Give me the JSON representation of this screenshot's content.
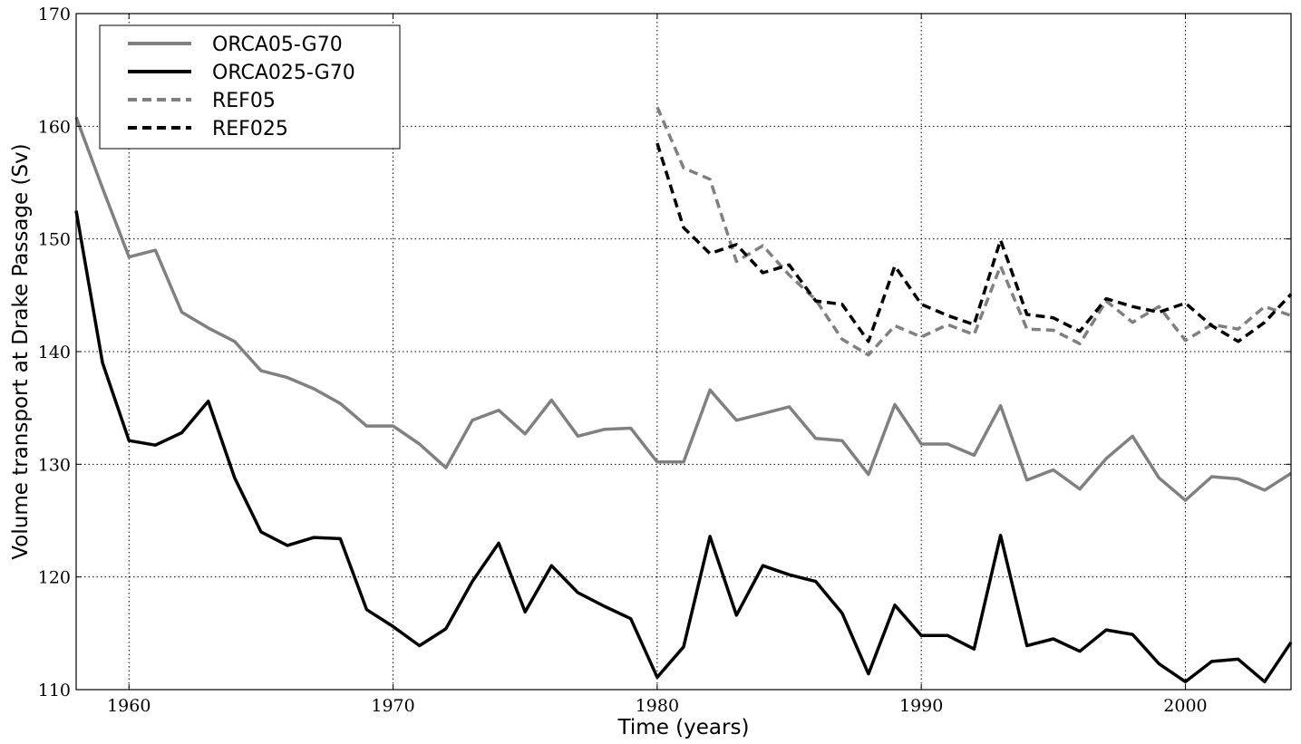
{
  "chart_data": {
    "type": "line",
    "xlabel": "Time (years)",
    "ylabel": "Volume transport at Drake Passage (Sv)",
    "xlim": [
      1958,
      2004
    ],
    "ylim": [
      110,
      170
    ],
    "xticks": [
      1960,
      1970,
      1980,
      1990,
      2000
    ],
    "yticks": [
      110,
      120,
      130,
      140,
      150,
      160,
      170
    ],
    "grid": true,
    "legend_position": "top-left",
    "series": [
      {
        "name": "ORCA05-G70",
        "color": "#808080",
        "style": "solid",
        "x": [
          1958,
          1959,
          1960,
          1961,
          1962,
          1963,
          1964,
          1965,
          1966,
          1967,
          1968,
          1969,
          1970,
          1971,
          1972,
          1973,
          1974,
          1975,
          1976,
          1977,
          1978,
          1979,
          1980,
          1981,
          1982,
          1983,
          1984,
          1985,
          1986,
          1987,
          1988,
          1989,
          1990,
          1991,
          1992,
          1993,
          1994,
          1995,
          1996,
          1997,
          1998,
          1999,
          2000,
          2001,
          2002,
          2003,
          2004
        ],
        "values": [
          160.8,
          154.5,
          148.4,
          149.0,
          143.5,
          142.1,
          140.9,
          138.3,
          137.7,
          136.7,
          135.4,
          133.4,
          133.4,
          131.8,
          129.7,
          133.9,
          134.8,
          132.7,
          135.7,
          132.5,
          133.1,
          133.2,
          130.2,
          130.2,
          136.6,
          133.9,
          134.5,
          135.1,
          132.3,
          132.1,
          129.1,
          135.3,
          131.8,
          131.8,
          130.8,
          135.2,
          128.6,
          129.5,
          127.8,
          130.5,
          132.5,
          128.8,
          126.8,
          128.9,
          128.7,
          127.7,
          129.2
        ]
      },
      {
        "name": "ORCA025-G70",
        "color": "#000000",
        "style": "solid",
        "x": [
          1958,
          1959,
          1960,
          1961,
          1962,
          1963,
          1964,
          1965,
          1966,
          1967,
          1968,
          1969,
          1970,
          1971,
          1972,
          1973,
          1974,
          1975,
          1976,
          1977,
          1978,
          1979,
          1980,
          1981,
          1982,
          1983,
          1984,
          1985,
          1986,
          1987,
          1988,
          1989,
          1990,
          1991,
          1992,
          1993,
          1994,
          1995,
          1996,
          1997,
          1998,
          1999,
          2000,
          2001,
          2002,
          2003,
          2004
        ],
        "values": [
          152.5,
          139.0,
          132.1,
          131.7,
          132.8,
          135.6,
          128.8,
          124.0,
          122.8,
          123.5,
          123.4,
          117.1,
          115.6,
          113.9,
          115.4,
          119.6,
          123.0,
          116.9,
          121.0,
          118.6,
          117.4,
          116.3,
          111.1,
          113.8,
          123.6,
          116.6,
          121.0,
          120.2,
          119.6,
          116.8,
          111.4,
          117.5,
          114.8,
          114.8,
          113.6,
          123.7,
          113.9,
          114.5,
          113.4,
          115.3,
          114.9,
          112.3,
          110.7,
          112.5,
          112.7,
          110.7,
          114.2
        ]
      },
      {
        "name": "REF05",
        "color": "#808080",
        "style": "dashed",
        "x": [
          1980,
          1981,
          1982,
          1983,
          1984,
          1985,
          1986,
          1987,
          1988,
          1989,
          1990,
          1991,
          1992,
          1993,
          1994,
          1995,
          1996,
          1997,
          1998,
          1999,
          2000,
          2001,
          2002,
          2003,
          2004
        ],
        "values": [
          161.7,
          156.3,
          155.3,
          148.0,
          149.4,
          146.8,
          144.6,
          141.1,
          139.7,
          142.3,
          141.3,
          142.4,
          141.5,
          147.6,
          142.0,
          141.9,
          140.7,
          144.5,
          142.6,
          144.0,
          141.0,
          142.4,
          142.0,
          144.0,
          143.2
        ]
      },
      {
        "name": "REF025",
        "color": "#000000",
        "style": "dashed",
        "x": [
          1980,
          1981,
          1982,
          1983,
          1984,
          1985,
          1986,
          1987,
          1988,
          1989,
          1990,
          1991,
          1992,
          1993,
          1994,
          1995,
          1996,
          1997,
          1998,
          1999,
          2000,
          2001,
          2002,
          2003,
          2004
        ],
        "values": [
          158.5,
          151.0,
          148.7,
          149.5,
          147.0,
          147.7,
          144.5,
          144.2,
          140.9,
          147.6,
          144.2,
          143.2,
          142.4,
          149.9,
          143.3,
          143.0,
          141.8,
          144.7,
          144.0,
          143.5,
          144.3,
          142.3,
          140.9,
          142.6,
          145.1
        ]
      }
    ]
  }
}
